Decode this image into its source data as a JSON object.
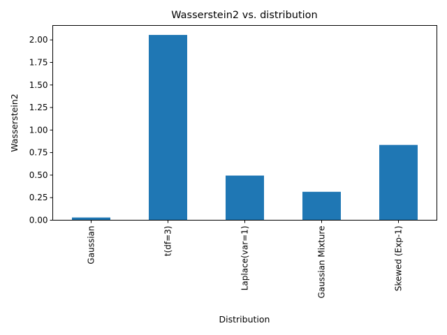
{
  "chart_data": {
    "type": "bar",
    "title": "Wasserstein2 vs. distribution",
    "xlabel": "Distribution",
    "ylabel": "Wasserstein2",
    "categories": [
      "Gaussian",
      "t(df=3)",
      "Laplace(var=1)",
      "Gaussian Mixture",
      "Skewed (Exp-1)"
    ],
    "values": [
      0.03,
      2.055,
      0.495,
      0.315,
      0.835
    ],
    "ylim": [
      0,
      2.16
    ],
    "yticks": [
      "0.00",
      "0.25",
      "0.50",
      "0.75",
      "1.00",
      "1.25",
      "1.50",
      "1.75",
      "2.00"
    ],
    "ytick_values": [
      0,
      0.25,
      0.5,
      0.75,
      1.0,
      1.25,
      1.5,
      1.75,
      2.0
    ],
    "bar_color": "#1f77b4",
    "grid": false,
    "legend": "none"
  }
}
